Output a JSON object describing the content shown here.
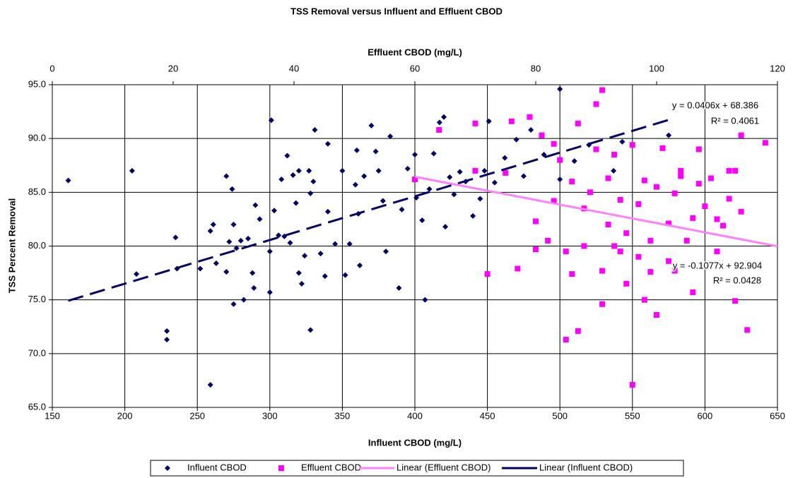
{
  "chart_data": {
    "type": "scatter",
    "title": "TSS Removal versus Influent and Effluent CBOD",
    "x_label": "Influent CBOD (mg/L)",
    "x2_label": "Effluent CBOD (mg/L)",
    "y_label": "TSS Percent Removal",
    "xlim": [
      150,
      650
    ],
    "xticks": [
      150,
      200,
      250,
      300,
      350,
      400,
      450,
      500,
      550,
      600,
      650
    ],
    "x2lim": [
      0,
      120
    ],
    "x2ticks": [
      0,
      20,
      40,
      60,
      80,
      100,
      120
    ],
    "ylim": [
      65,
      95
    ],
    "yticks": [
      {
        "value": 65,
        "label": "65.0"
      },
      {
        "value": 70,
        "label": "70.0"
      },
      {
        "value": 75,
        "label": "75.0"
      },
      {
        "value": 80,
        "label": "80.0"
      },
      {
        "value": 85,
        "label": "85.0"
      },
      {
        "value": 90,
        "label": "90.0"
      },
      {
        "value": 95,
        "label": "95.0"
      }
    ],
    "grid": true,
    "legend": "bottom",
    "series": [
      {
        "name": "Influent CBOD",
        "color": "#000066",
        "marker": "diamond",
        "x": [
          161,
          205,
          208,
          229,
          229,
          235,
          236,
          252,
          259,
          259,
          261,
          263,
          270,
          270,
          272,
          274,
          275,
          275,
          277,
          280,
          282,
          285,
          288,
          289,
          290,
          293,
          300,
          300,
          301,
          303,
          306,
          308,
          310,
          312,
          314,
          316,
          318,
          320,
          320,
          322,
          324,
          327,
          328,
          328,
          330,
          331,
          335,
          338,
          340,
          340,
          345,
          350,
          352,
          355,
          359,
          360,
          361,
          362,
          365,
          370,
          373,
          375,
          378,
          380,
          383,
          389,
          391,
          395,
          400,
          401,
          405,
          407,
          410,
          413,
          417,
          420,
          421,
          424,
          427,
          431,
          435,
          440,
          445,
          448,
          451,
          455,
          462,
          470,
          475,
          480,
          489,
          500,
          500,
          510,
          520,
          537,
          543,
          575
        ],
        "values": [
          86.1,
          87,
          77.4,
          72.1,
          71.3,
          80.8,
          77.9,
          77.9,
          67.1,
          81.4,
          82,
          78.4,
          86.5,
          77.6,
          80.4,
          85.3,
          82,
          74.6,
          79.8,
          80.5,
          75,
          80.7,
          77.5,
          76.1,
          83.8,
          82.5,
          79.5,
          75.7,
          91.7,
          83.3,
          81,
          86.2,
          80.9,
          88.4,
          80.3,
          86.6,
          84,
          77.5,
          87,
          76.5,
          79.1,
          87,
          72.2,
          84.9,
          86,
          90.8,
          79.3,
          77.2,
          89.5,
          83.2,
          80.2,
          87,
          77.3,
          80.2,
          85.7,
          88.9,
          83,
          78.2,
          86.5,
          91.2,
          88.8,
          87,
          84.2,
          79.5,
          90.2,
          76.1,
          83.4,
          87.2,
          88.5,
          84.5,
          82.4,
          75,
          85.3,
          88.6,
          91.5,
          92,
          81.8,
          86.4,
          84.8,
          86.9,
          86,
          82.8,
          84.4,
          87,
          91.6,
          85.9,
          88.2,
          89.9,
          86.5,
          90.8,
          88.5,
          94.6,
          86.2,
          87.9,
          89.4,
          87,
          89.7,
          90.3
        ]
      },
      {
        "name": "Effluent CBOD",
        "color": "#ff00ff",
        "marker": "square",
        "axis": "x2",
        "x": [
          60,
          64,
          70,
          70,
          72,
          75,
          76,
          77,
          79,
          80,
          80,
          81,
          82,
          83,
          83,
          84,
          85,
          85,
          86,
          86,
          87,
          87,
          88,
          88,
          89,
          90,
          90,
          91,
          91,
          91,
          92,
          92,
          93,
          93,
          94,
          94,
          95,
          95,
          96,
          96,
          97,
          97,
          98,
          98,
          99,
          99,
          100,
          100,
          101,
          102,
          102,
          103,
          103,
          104,
          104,
          105,
          106,
          106,
          107,
          107,
          108,
          109,
          110,
          110,
          111,
          112,
          113,
          113,
          114,
          114,
          115,
          118,
          112
        ],
        "values": [
          86.2,
          90.8,
          91.4,
          87,
          77.4,
          86.8,
          91.6,
          77.9,
          92,
          79.7,
          82.3,
          90.3,
          80.5,
          89.5,
          84.2,
          88,
          79.5,
          71.3,
          77.4,
          86,
          91.4,
          72.1,
          80,
          83.5,
          85,
          93.2,
          89,
          74.6,
          94.5,
          77.7,
          82,
          86.3,
          80,
          88.5,
          79.5,
          84.3,
          76.5,
          81.2,
          67.1,
          89.4,
          83.9,
          79,
          75,
          86.1,
          77.6,
          80.5,
          85.5,
          73.6,
          89.1,
          82.1,
          78.6,
          84.9,
          77.7,
          87,
          86.5,
          80.5,
          82.6,
          75.7,
          85.8,
          89,
          83.7,
          86.3,
          82.5,
          79.5,
          81.9,
          84.4,
          87,
          74.9,
          90.3,
          83.2,
          72.2,
          89.6,
          87
        ]
      },
      {
        "name": "Linear (Effluent CBOD)",
        "type": "line",
        "color": "#ff80ff",
        "axis": "x2",
        "x": [
          60,
          120
        ],
        "values": [
          86.44,
          79.98
        ],
        "equation": "y = -0.1077x + 92.904",
        "r2": "R² = 0.0428"
      },
      {
        "name": "Linear (Influent CBOD)",
        "type": "line",
        "color": "#000066",
        "dashed": true,
        "x": [
          161,
          575
        ],
        "values": [
          74.92,
          91.73
        ],
        "equation": "y = 0.0406x + 68.386",
        "r2": "R² = 0.4061"
      }
    ]
  }
}
